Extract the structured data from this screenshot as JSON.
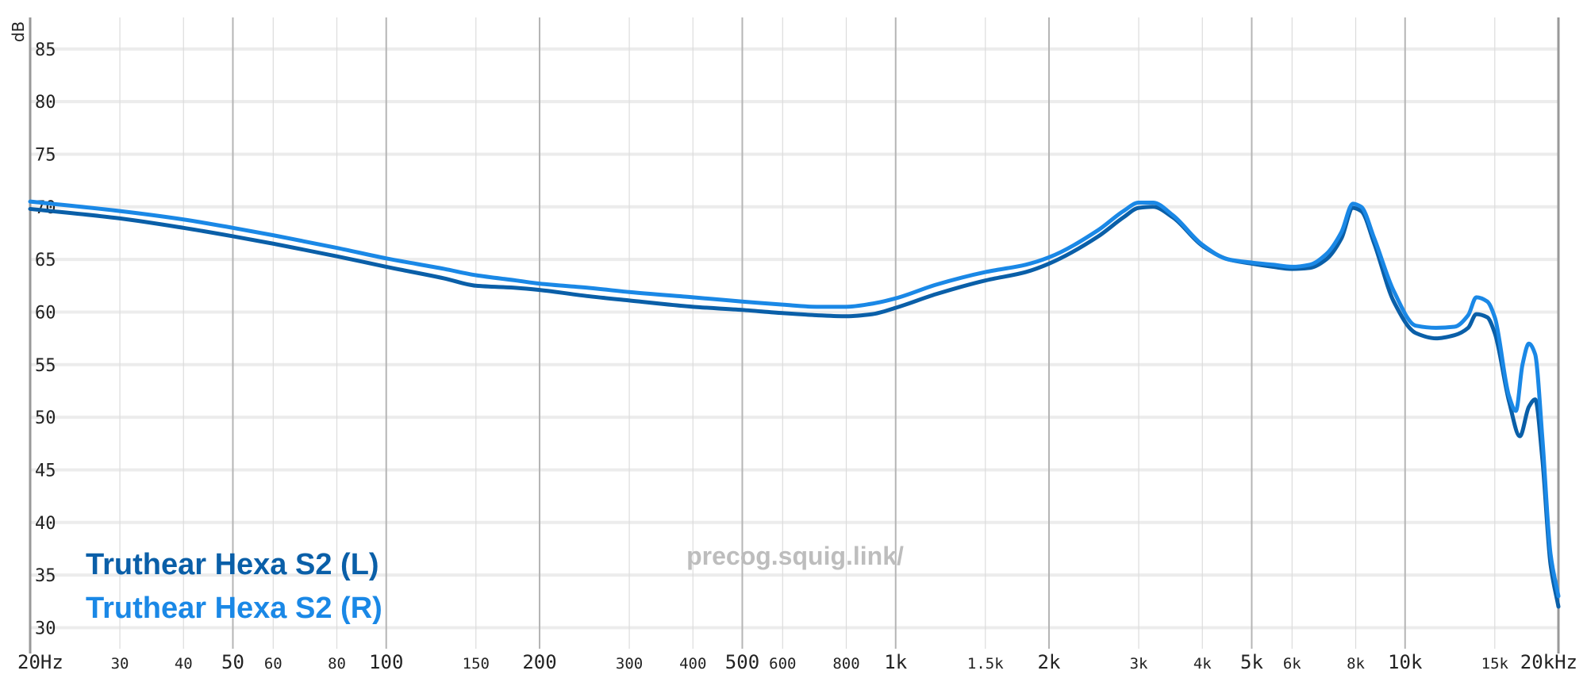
{
  "chart_data": {
    "type": "line",
    "ylabel": "dB",
    "xscale": "log",
    "xlim": [
      20,
      20000
    ],
    "ylim": [
      28,
      88
    ],
    "y_ticks": [
      85,
      80,
      75,
      70,
      65,
      60,
      55,
      50,
      45,
      40,
      35,
      30
    ],
    "x_ticks": [
      {
        "v": 20,
        "label": "20Hz",
        "major": true
      },
      {
        "v": 30,
        "label": "30",
        "major": false
      },
      {
        "v": 40,
        "label": "40",
        "major": false
      },
      {
        "v": 50,
        "label": "50",
        "major": true
      },
      {
        "v": 60,
        "label": "60",
        "major": false
      },
      {
        "v": 80,
        "label": "80",
        "major": false
      },
      {
        "v": 100,
        "label": "100",
        "major": true
      },
      {
        "v": 150,
        "label": "150",
        "major": false
      },
      {
        "v": 200,
        "label": "200",
        "major": true
      },
      {
        "v": 300,
        "label": "300",
        "major": false
      },
      {
        "v": 400,
        "label": "400",
        "major": false
      },
      {
        "v": 500,
        "label": "500",
        "major": true
      },
      {
        "v": 600,
        "label": "600",
        "major": false
      },
      {
        "v": 800,
        "label": "800",
        "major": false
      },
      {
        "v": 1000,
        "label": "1k",
        "major": true
      },
      {
        "v": 1500,
        "label": "1.5k",
        "major": false
      },
      {
        "v": 2000,
        "label": "2k",
        "major": true
      },
      {
        "v": 3000,
        "label": "3k",
        "major": false
      },
      {
        "v": 4000,
        "label": "4k",
        "major": false
      },
      {
        "v": 5000,
        "label": "5k",
        "major": true
      },
      {
        "v": 6000,
        "label": "6k",
        "major": false
      },
      {
        "v": 8000,
        "label": "8k",
        "major": false
      },
      {
        "v": 10000,
        "label": "10k",
        "major": true
      },
      {
        "v": 15000,
        "label": "15k",
        "major": false
      },
      {
        "v": 20000,
        "label": "20kHz",
        "major": true
      }
    ],
    "grid": true,
    "legend_position": "bottom-left",
    "watermark": "precog.squig.link/",
    "series": [
      {
        "name": "Truthear Hexa S2 (L)",
        "color": "#0a5fa8",
        "points": [
          [
            20,
            69.8
          ],
          [
            30,
            68.9
          ],
          [
            40,
            68.0
          ],
          [
            50,
            67.2
          ],
          [
            60,
            66.5
          ],
          [
            80,
            65.3
          ],
          [
            100,
            64.3
          ],
          [
            130,
            63.2
          ],
          [
            150,
            62.5
          ],
          [
            180,
            62.3
          ],
          [
            200,
            62.1
          ],
          [
            250,
            61.5
          ],
          [
            300,
            61.1
          ],
          [
            400,
            60.5
          ],
          [
            500,
            60.2
          ],
          [
            600,
            59.9
          ],
          [
            700,
            59.7
          ],
          [
            800,
            59.6
          ],
          [
            900,
            59.8
          ],
          [
            1000,
            60.4
          ],
          [
            1200,
            61.7
          ],
          [
            1500,
            63.0
          ],
          [
            1800,
            63.8
          ],
          [
            2000,
            64.6
          ],
          [
            2500,
            67.2
          ],
          [
            2800,
            69.0
          ],
          [
            3000,
            69.9
          ],
          [
            3200,
            70.0
          ],
          [
            3500,
            69.0
          ],
          [
            4000,
            66.3
          ],
          [
            4500,
            65.0
          ],
          [
            5000,
            64.6
          ],
          [
            5500,
            64.3
          ],
          [
            6000,
            64.1
          ],
          [
            6500,
            64.2
          ],
          [
            7000,
            65.0
          ],
          [
            7500,
            67.0
          ],
          [
            7900,
            69.9
          ],
          [
            8200,
            69.6
          ],
          [
            8700,
            66.5
          ],
          [
            9500,
            61.0
          ],
          [
            10500,
            58.0
          ],
          [
            11500,
            57.5
          ],
          [
            12500,
            57.8
          ],
          [
            13300,
            58.5
          ],
          [
            13800,
            59.8
          ],
          [
            14500,
            59.5
          ],
          [
            15000,
            58.0
          ],
          [
            16000,
            51.5
          ],
          [
            16800,
            48.2
          ],
          [
            17500,
            51.0
          ],
          [
            18000,
            51.7
          ],
          [
            18600,
            46.0
          ],
          [
            19300,
            36.0
          ],
          [
            20000,
            32.0
          ]
        ]
      },
      {
        "name": "Truthear Hexa S2 (R)",
        "color": "#1a88e6",
        "points": [
          [
            20,
            70.5
          ],
          [
            30,
            69.6
          ],
          [
            40,
            68.8
          ],
          [
            50,
            68.0
          ],
          [
            60,
            67.3
          ],
          [
            80,
            66.1
          ],
          [
            100,
            65.1
          ],
          [
            130,
            64.1
          ],
          [
            150,
            63.5
          ],
          [
            180,
            63.0
          ],
          [
            200,
            62.7
          ],
          [
            250,
            62.3
          ],
          [
            300,
            61.9
          ],
          [
            400,
            61.4
          ],
          [
            500,
            61.0
          ],
          [
            600,
            60.7
          ],
          [
            700,
            60.5
          ],
          [
            800,
            60.5
          ],
          [
            900,
            60.8
          ],
          [
            1000,
            61.3
          ],
          [
            1200,
            62.6
          ],
          [
            1500,
            63.8
          ],
          [
            1800,
            64.5
          ],
          [
            2000,
            65.2
          ],
          [
            2500,
            67.8
          ],
          [
            2800,
            69.6
          ],
          [
            3000,
            70.4
          ],
          [
            3200,
            70.4
          ],
          [
            3500,
            69.2
          ],
          [
            4000,
            66.4
          ],
          [
            4500,
            65.0
          ],
          [
            5000,
            64.7
          ],
          [
            5500,
            64.5
          ],
          [
            6000,
            64.3
          ],
          [
            6500,
            64.5
          ],
          [
            7000,
            65.5
          ],
          [
            7500,
            67.6
          ],
          [
            7900,
            70.3
          ],
          [
            8200,
            70.0
          ],
          [
            8700,
            67.0
          ],
          [
            9500,
            62.0
          ],
          [
            10500,
            58.7
          ],
          [
            11500,
            58.5
          ],
          [
            12500,
            58.6
          ],
          [
            13300,
            59.7
          ],
          [
            13800,
            61.4
          ],
          [
            14500,
            61.0
          ],
          [
            15000,
            59.5
          ],
          [
            16000,
            52.0
          ],
          [
            16500,
            50.6
          ],
          [
            17000,
            55.0
          ],
          [
            17500,
            57.0
          ],
          [
            18000,
            56.0
          ],
          [
            18600,
            48.0
          ],
          [
            19300,
            37.0
          ],
          [
            20000,
            33.0
          ]
        ]
      }
    ]
  }
}
